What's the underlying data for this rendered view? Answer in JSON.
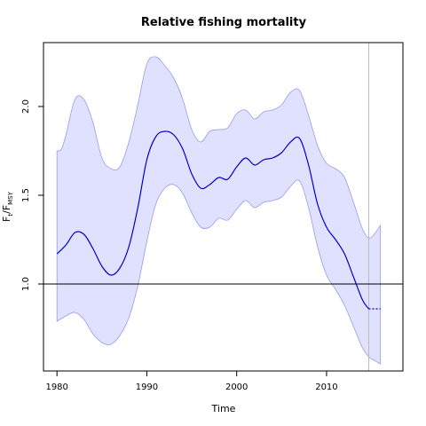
{
  "chart_data": {
    "type": "line",
    "title": "Relative fishing mortality",
    "xlabel": "Time",
    "ylabel": {
      "main": "F",
      "sub1": "t",
      "slash": "/F",
      "sub2": "MSY"
    },
    "xlim": [
      1978.5,
      2018.5
    ],
    "ylim": [
      0.51,
      2.36
    ],
    "xticks": [
      1980,
      1990,
      2000,
      2010
    ],
    "yticks": [
      1.0,
      1.5,
      2.0
    ],
    "ytick_labels": [
      "1.0",
      "1.5",
      "2.0"
    ],
    "reference_line_y": 1.0,
    "vertical_line_x": 2014.7,
    "colors": {
      "line": "#0000cc",
      "band_fill": "#e0e0ff",
      "band_edge": "#9a9af0",
      "refline": "#000000",
      "vline": "#bbbbbb"
    },
    "series": [
      {
        "values": [
          {
            "x": 1980.0,
            "y": 1.17
          },
          {
            "x": 1981.0,
            "y": 1.22
          },
          {
            "x": 1982.0,
            "y": 1.29
          },
          {
            "x": 1983.0,
            "y": 1.28
          },
          {
            "x": 1984.0,
            "y": 1.2
          },
          {
            "x": 1985.0,
            "y": 1.1
          },
          {
            "x": 1986.0,
            "y": 1.05
          },
          {
            "x": 1987.0,
            "y": 1.09
          },
          {
            "x": 1988.0,
            "y": 1.21
          },
          {
            "x": 1989.0,
            "y": 1.43
          },
          {
            "x": 1990.0,
            "y": 1.7
          },
          {
            "x": 1991.0,
            "y": 1.83
          },
          {
            "x": 1992.0,
            "y": 1.86
          },
          {
            "x": 1993.0,
            "y": 1.84
          },
          {
            "x": 1994.0,
            "y": 1.76
          },
          {
            "x": 1995.0,
            "y": 1.62
          },
          {
            "x": 1996.0,
            "y": 1.54
          },
          {
            "x": 1997.0,
            "y": 1.56
          },
          {
            "x": 1998.0,
            "y": 1.6
          },
          {
            "x": 1999.0,
            "y": 1.59
          },
          {
            "x": 2000.0,
            "y": 1.66
          },
          {
            "x": 2001.0,
            "y": 1.71
          },
          {
            "x": 2002.0,
            "y": 1.67
          },
          {
            "x": 2003.0,
            "y": 1.7
          },
          {
            "x": 2004.0,
            "y": 1.71
          },
          {
            "x": 2005.0,
            "y": 1.74
          },
          {
            "x": 2006.0,
            "y": 1.8
          },
          {
            "x": 2007.0,
            "y": 1.82
          },
          {
            "x": 2008.0,
            "y": 1.67
          },
          {
            "x": 2009.0,
            "y": 1.45
          },
          {
            "x": 2010.0,
            "y": 1.32
          },
          {
            "x": 2011.0,
            "y": 1.25
          },
          {
            "x": 2012.0,
            "y": 1.17
          },
          {
            "x": 2013.0,
            "y": 1.04
          },
          {
            "x": 2014.0,
            "y": 0.91
          },
          {
            "x": 2014.7,
            "y": 0.86
          }
        ],
        "projection": [
          {
            "x": 2014.7,
            "y": 0.86
          },
          {
            "x": 2016.0,
            "y": 0.86
          }
        ],
        "upper": [
          {
            "x": 1980.0,
            "y": 1.75
          },
          {
            "x": 1980.5,
            "y": 1.76
          },
          {
            "x": 1981.0,
            "y": 1.84
          },
          {
            "x": 1982.0,
            "y": 2.04
          },
          {
            "x": 1983.0,
            "y": 2.04
          },
          {
            "x": 1984.0,
            "y": 1.91
          },
          {
            "x": 1985.0,
            "y": 1.71
          },
          {
            "x": 1986.0,
            "y": 1.65
          },
          {
            "x": 1987.0,
            "y": 1.66
          },
          {
            "x": 1988.0,
            "y": 1.8
          },
          {
            "x": 1989.0,
            "y": 2.01
          },
          {
            "x": 1990.0,
            "y": 2.24
          },
          {
            "x": 1991.0,
            "y": 2.28
          },
          {
            "x": 1992.0,
            "y": 2.23
          },
          {
            "x": 1993.0,
            "y": 2.16
          },
          {
            "x": 1994.0,
            "y": 2.04
          },
          {
            "x": 1995.0,
            "y": 1.87
          },
          {
            "x": 1996.0,
            "y": 1.8
          },
          {
            "x": 1997.0,
            "y": 1.86
          },
          {
            "x": 1998.0,
            "y": 1.87
          },
          {
            "x": 1999.0,
            "y": 1.88
          },
          {
            "x": 2000.0,
            "y": 1.96
          },
          {
            "x": 2001.0,
            "y": 1.98
          },
          {
            "x": 2002.0,
            "y": 1.93
          },
          {
            "x": 2003.0,
            "y": 1.97
          },
          {
            "x": 2004.0,
            "y": 1.98
          },
          {
            "x": 2005.0,
            "y": 2.01
          },
          {
            "x": 2006.0,
            "y": 2.08
          },
          {
            "x": 2007.0,
            "y": 2.09
          },
          {
            "x": 2008.0,
            "y": 1.95
          },
          {
            "x": 2009.0,
            "y": 1.78
          },
          {
            "x": 2010.0,
            "y": 1.68
          },
          {
            "x": 2011.0,
            "y": 1.65
          },
          {
            "x": 2012.0,
            "y": 1.6
          },
          {
            "x": 2013.0,
            "y": 1.46
          },
          {
            "x": 2014.0,
            "y": 1.31
          },
          {
            "x": 2014.7,
            "y": 1.26
          },
          {
            "x": 2015.3,
            "y": 1.28
          },
          {
            "x": 2016.0,
            "y": 1.33
          }
        ],
        "lower": [
          {
            "x": 1980.0,
            "y": 0.79
          },
          {
            "x": 1981.0,
            "y": 0.82
          },
          {
            "x": 1982.0,
            "y": 0.84
          },
          {
            "x": 1983.0,
            "y": 0.8
          },
          {
            "x": 1984.0,
            "y": 0.72
          },
          {
            "x": 1985.0,
            "y": 0.67
          },
          {
            "x": 1986.0,
            "y": 0.66
          },
          {
            "x": 1987.0,
            "y": 0.71
          },
          {
            "x": 1988.0,
            "y": 0.81
          },
          {
            "x": 1989.0,
            "y": 0.99
          },
          {
            "x": 1990.0,
            "y": 1.24
          },
          {
            "x": 1991.0,
            "y": 1.45
          },
          {
            "x": 1992.0,
            "y": 1.54
          },
          {
            "x": 1993.0,
            "y": 1.56
          },
          {
            "x": 1994.0,
            "y": 1.51
          },
          {
            "x": 1995.0,
            "y": 1.4
          },
          {
            "x": 1996.0,
            "y": 1.32
          },
          {
            "x": 1997.0,
            "y": 1.32
          },
          {
            "x": 1998.0,
            "y": 1.37
          },
          {
            "x": 1999.0,
            "y": 1.36
          },
          {
            "x": 2000.0,
            "y": 1.42
          },
          {
            "x": 2001.0,
            "y": 1.47
          },
          {
            "x": 2002.0,
            "y": 1.43
          },
          {
            "x": 2003.0,
            "y": 1.46
          },
          {
            "x": 2004.0,
            "y": 1.47
          },
          {
            "x": 2005.0,
            "y": 1.49
          },
          {
            "x": 2006.0,
            "y": 1.55
          },
          {
            "x": 2007.0,
            "y": 1.58
          },
          {
            "x": 2008.0,
            "y": 1.43
          },
          {
            "x": 2009.0,
            "y": 1.21
          },
          {
            "x": 2010.0,
            "y": 1.05
          },
          {
            "x": 2011.0,
            "y": 0.97
          },
          {
            "x": 2012.0,
            "y": 0.88
          },
          {
            "x": 2013.0,
            "y": 0.76
          },
          {
            "x": 2014.0,
            "y": 0.64
          },
          {
            "x": 2014.7,
            "y": 0.59
          },
          {
            "x": 2015.3,
            "y": 0.57
          },
          {
            "x": 2016.0,
            "y": 0.55
          }
        ]
      }
    ]
  }
}
